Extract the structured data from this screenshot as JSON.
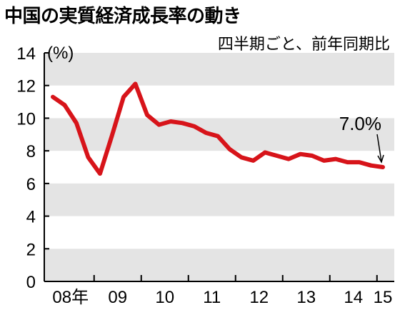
{
  "title": "中国の実質経済成長率の動き",
  "subtitle": "四半期ごと、前年同期比",
  "colors": {
    "line": "#d7141a",
    "band": "#e4e4e4"
  },
  "chart_data": {
    "type": "line",
    "title": "中国の実質経済成長率の動き",
    "subtitle": "四半期ごと、前年同期比",
    "ylabel": "(%)",
    "xlabel": "",
    "ylim": [
      0,
      14
    ],
    "yticks": [
      0,
      2,
      4,
      6,
      8,
      10,
      12,
      14
    ],
    "grid": "alternating horizontal bands",
    "x_tick_labels": [
      {
        "label": "08年",
        "q": 1.5
      },
      {
        "label": "09",
        "q": 5.5
      },
      {
        "label": "10",
        "q": 9.5
      },
      {
        "label": "11",
        "q": 13.5
      },
      {
        "label": "12",
        "q": 17.5
      },
      {
        "label": "13",
        "q": 21.5
      },
      {
        "label": "14",
        "q": 25.5
      },
      {
        "label": "15",
        "q": 28.0
      }
    ],
    "x": [
      "2008Q1",
      "2008Q2",
      "2008Q3",
      "2008Q4",
      "2009Q1",
      "2009Q2",
      "2009Q3",
      "2009Q4",
      "2010Q1",
      "2010Q2",
      "2010Q3",
      "2010Q4",
      "2011Q1",
      "2011Q2",
      "2011Q3",
      "2011Q4",
      "2012Q1",
      "2012Q2",
      "2012Q3",
      "2012Q4",
      "2013Q1",
      "2013Q2",
      "2013Q3",
      "2013Q4",
      "2014Q1",
      "2014Q2",
      "2014Q3",
      "2014Q4",
      "2015Q1"
    ],
    "values": [
      11.3,
      10.8,
      9.7,
      7.6,
      6.6,
      8.9,
      11.3,
      12.1,
      10.2,
      9.6,
      9.8,
      9.7,
      9.5,
      9.1,
      8.9,
      8.1,
      7.6,
      7.4,
      7.9,
      7.7,
      7.5,
      7.8,
      7.7,
      7.4,
      7.5,
      7.3,
      7.3,
      7.1,
      7.0
    ],
    "annotation": {
      "text": "7.0%",
      "index": 28
    }
  }
}
